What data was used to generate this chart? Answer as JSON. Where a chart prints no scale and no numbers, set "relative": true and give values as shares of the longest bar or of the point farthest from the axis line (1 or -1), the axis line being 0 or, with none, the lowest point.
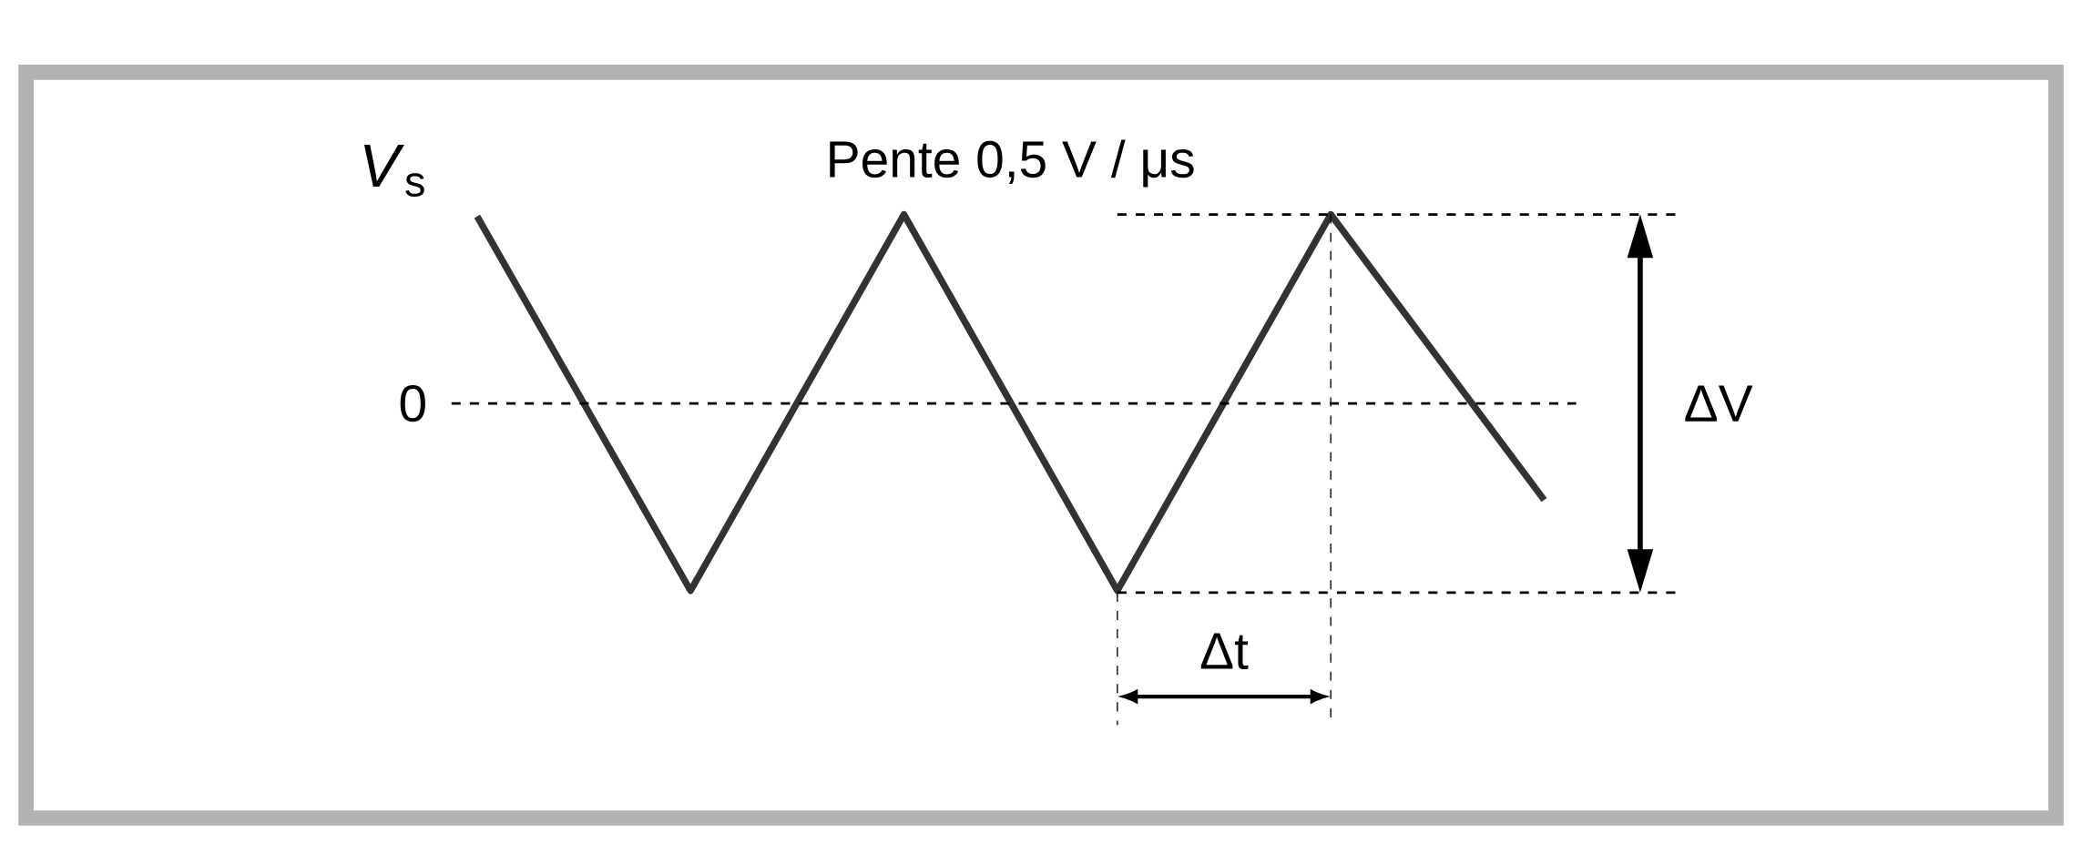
{
  "chart_data": {
    "type": "line",
    "relative": true,
    "ylabel": "*V*$_{s}$",
    "annotations": [
      "Pente 0,5 V / μs",
      "ΔV",
      "Δt"
    ],
    "categories": [
      null,
      null,
      null,
      null,
      null,
      null
    ],
    "values": [
      0.99,
      -0.99,
      1,
      -0.99,
      1,
      -0.51
    ],
    "color": "#333333",
    "line_style": "solid",
    "ref_lines": [
      {
        "axis": "y",
        "value": 0,
        "label": "0",
        "line_style": "dashed"
      },
      {
        "axis": "y",
        "value": 1,
        "line_style": "dashed"
      },
      {
        "axis": "y",
        "value": -1,
        "line_style": "dashed"
      }
    ]
  }
}
